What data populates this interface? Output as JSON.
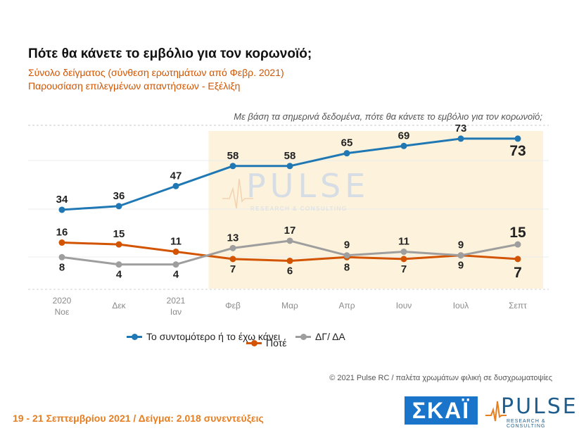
{
  "title": "Πότε θα κάνετε το εμβόλιο για τον κορωνοϊό;",
  "subtitle1": "Σύνολο δείγματος (σύνθεση ερωτημάτων από Φεβρ. 2021)",
  "subtitle2": "Παρουσίαση επιλεγμένων απαντήσεων - Εξέλιξη",
  "question": "Με βάση τα σημερινά δεδομένα, πότε θα κάνετε το εμβόλιο για τον κορωνοϊό;",
  "watermark": {
    "word": "PULSE",
    "tagline": "RESEARCH & CONSULTING"
  },
  "legend": {
    "series0": "Το συντομότερο ή το έχω κάνει",
    "series1": "Ποτέ",
    "series2": "ΔΓ/ ΔΑ"
  },
  "copyright": "© 2021 Pulse RC  /  παλέτα χρωμάτων φιλική σε δυσχρωματοψίες",
  "footer": "19 - 21 Σεπτεμβρίου 2021  /  Δείγμα:  2.018 συνεντεύξεις",
  "logos": {
    "skai": "ΣΚΑΪ",
    "pulse": "PULSE",
    "pulse_tag": "RESEARCH & CONSULTING"
  },
  "colors": {
    "blue": "#1f78b4",
    "orange": "#d35400",
    "gray": "#9e9e9e",
    "highlight": "#fdf2dc"
  },
  "chart_data": {
    "type": "line",
    "categories": [
      [
        "2020",
        "Νοε"
      ],
      [
        "Δεκ"
      ],
      [
        "2021",
        "Ιαν"
      ],
      [
        "Φεβ"
      ],
      [
        "Μαρ"
      ],
      [
        "Απρ"
      ],
      [
        "Ιουν"
      ],
      [
        "Ιουλ"
      ],
      [
        "Σεπτ"
      ]
    ],
    "series": [
      {
        "name": "Το συντομότερο ή το έχω κάνει",
        "values": [
          34,
          36,
          47,
          58,
          58,
          65,
          69,
          73,
          73
        ],
        "color": "#1f78b4"
      },
      {
        "name": "Ποτέ",
        "values": [
          16,
          15,
          11,
          7,
          6,
          8,
          7,
          9,
          7
        ],
        "color": "#d35400"
      },
      {
        "name": "ΔΓ/ ΔΑ",
        "values": [
          8,
          4,
          4,
          13,
          17,
          9,
          11,
          9,
          15
        ],
        "color": "#9e9e9e"
      }
    ],
    "highlight_from_category": 3
  }
}
